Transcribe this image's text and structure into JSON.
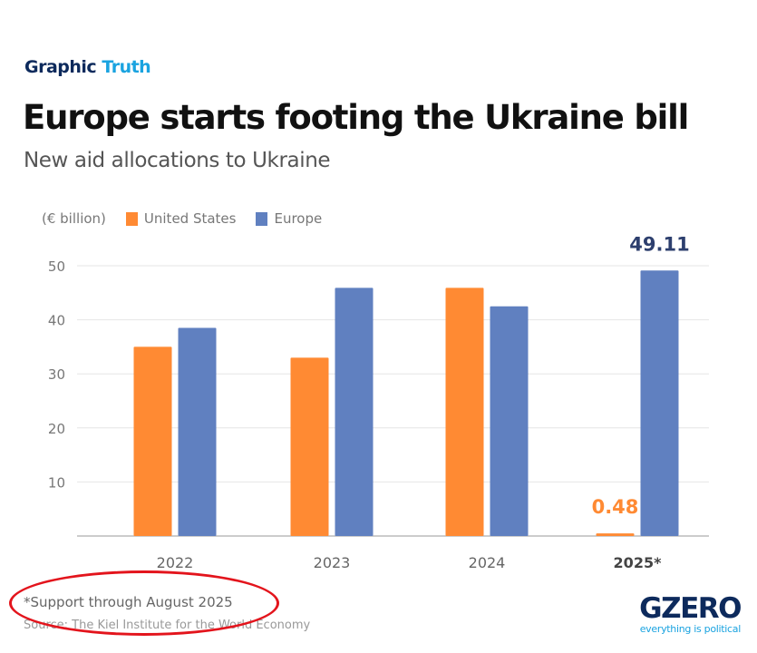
{
  "brand": {
    "part1": "Graphic",
    "part2": "Truth"
  },
  "title": "Europe starts footing the Ukraine bill",
  "subtitle": "New aid allocations to Ukraine",
  "footnote": "*Support through August 2025",
  "source": "Source: The Kiel Institute for the World Economy",
  "logo": {
    "name": "GZERO",
    "tagline": "everything is political"
  },
  "chart_data": {
    "type": "bar",
    "unit_label": "(€ billion)",
    "categories": [
      "2022",
      "2023",
      "2024",
      "2025*"
    ],
    "series": [
      {
        "name": "United States",
        "color": "#ff8a33",
        "values": [
          35.0,
          33.0,
          45.9,
          0.48
        ]
      },
      {
        "name": "Europe",
        "color": "#6080c0",
        "values": [
          38.5,
          45.9,
          42.5,
          49.11
        ]
      }
    ],
    "data_labels": [
      {
        "series": "United States",
        "category": "2025*",
        "text": "0.48",
        "color": "#ff8a33"
      },
      {
        "series": "Europe",
        "category": "2025*",
        "text": "49.11",
        "color": "#2d3f6e"
      }
    ],
    "yticks": [
      "10",
      "20",
      "30",
      "40",
      "50"
    ],
    "ylim": [
      0,
      50
    ],
    "grid": true,
    "legend": "top-left"
  }
}
